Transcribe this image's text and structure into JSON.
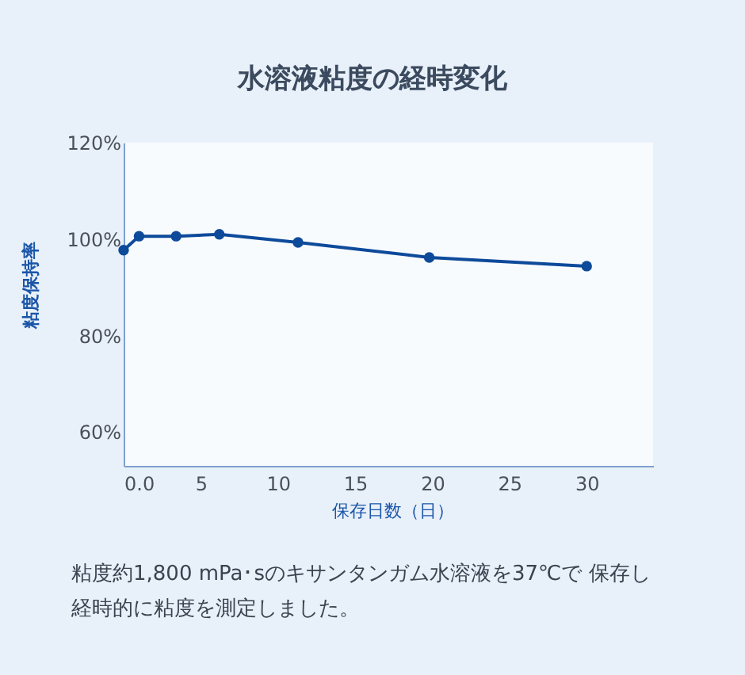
{
  "chart_data": {
    "type": "line",
    "title": "水溶液粘度の経時変化",
    "xlabel": "保存日数（日）",
    "ylabel": "粘度保持率",
    "x": [
      0,
      1,
      3.4,
      6.2,
      11.3,
      19.8,
      30
    ],
    "series": [
      {
        "color": "#0d4a9a",
        "values": [
          97.7,
          100.6,
          100.6,
          101.0,
          99.3,
          96.2,
          94.4
        ]
      }
    ],
    "xlim": [
      0,
      34.3
    ],
    "xticks": [
      {
        "value": 0,
        "label": "0.0"
      },
      5,
      10,
      15,
      20,
      25,
      30
    ],
    "ylim": [
      53,
      120
    ],
    "yticks": [
      {
        "value": 120,
        "label": "120%"
      },
      {
        "value": 100,
        "label": "100%"
      },
      {
        "value": 80,
        "label": "80%"
      },
      {
        "value": 60,
        "label": "60%"
      }
    ],
    "marker": "circle",
    "line_style": "solid",
    "grid": false,
    "annotations": [
      "粘度約1,800 mPa･sのキサンタンガム水溶液を37℃で 保存し",
      "経時的に粘度を測定しました。"
    ]
  }
}
